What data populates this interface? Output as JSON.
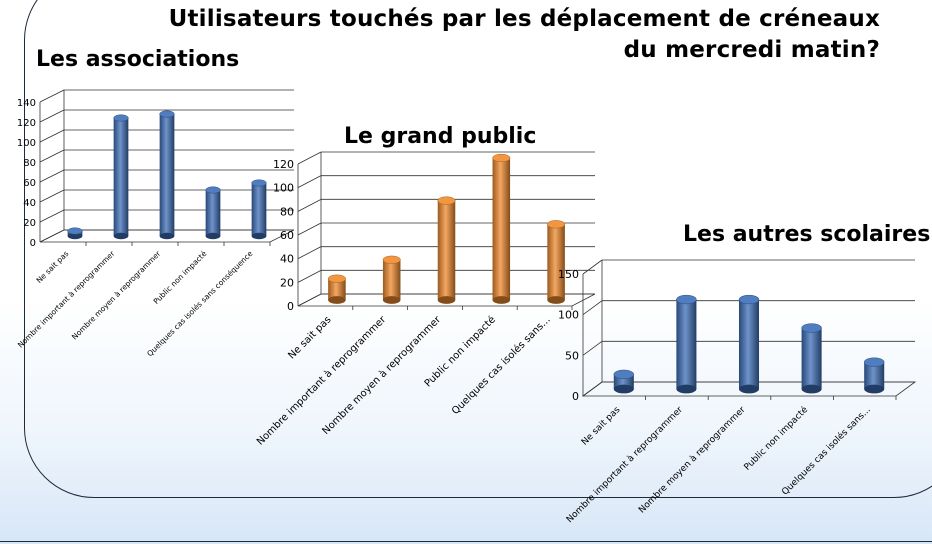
{
  "title": "Utilisateurs touchés par les déplacement de créneaux du mercredi matin?",
  "colors": {
    "blue": "#3d6fb8",
    "orange": "#f08a2c"
  },
  "chart_data": [
    {
      "type": "bar",
      "title": "Les associations",
      "categories": [
        "Ne sait pas",
        "Nombre important à reprogrammer",
        "Nombre moyen à reprogrammer",
        "Public non impacté",
        "Quelques cas isolés sans conséquence"
      ],
      "values": [
        5,
        118,
        122,
        46,
        53
      ],
      "ylim": [
        0,
        140
      ],
      "yticks": [
        0,
        20,
        40,
        60,
        80,
        100,
        120,
        140
      ],
      "color": "#3d6fb8",
      "grid": true
    },
    {
      "type": "bar",
      "title": "Le grand public",
      "categories": [
        "Ne sait pas",
        "Nombre important à reprogrammer",
        "Nombre moyen à reprogrammer",
        "Public non impacté",
        "Quelques cas isolés sans..."
      ],
      "values": [
        18,
        34,
        84,
        120,
        64
      ],
      "ylim": [
        0,
        120
      ],
      "yticks": [
        0,
        20,
        40,
        60,
        80,
        100,
        120
      ],
      "color": "#f08a2c",
      "grid": true
    },
    {
      "type": "bar",
      "title": "Les autres scolaires",
      "categories": [
        "Ne sait pas",
        "Nombre important à reprogrammer",
        "Nombre moyen à reprogrammer",
        "Public non impacté",
        "Quelques cas isolés sans..."
      ],
      "values": [
        18,
        110,
        110,
        75,
        33
      ],
      "ylim": [
        0,
        150
      ],
      "yticks": [
        0,
        50,
        100,
        150
      ],
      "color": "#3d6fb8",
      "grid": true
    }
  ]
}
